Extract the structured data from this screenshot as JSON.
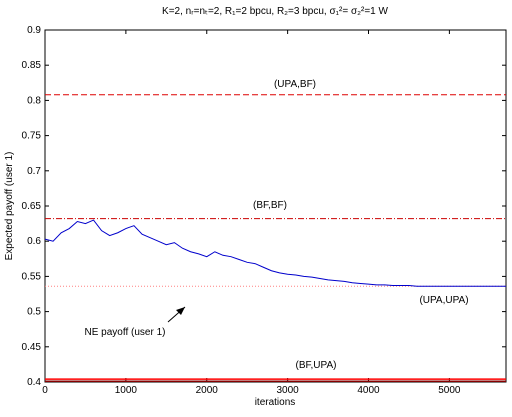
{
  "chart_data": {
    "type": "line",
    "title": "K=2, nᵣ=nₜ=2, R₁=2 bpcu, R₂=3 bpcu, σ₁²= σ₂²=1 W",
    "x_label": "iterations",
    "y_label": "Expected payoff (user 1)",
    "xlim": [
      0,
      5700
    ],
    "ylim": [
      0.4,
      0.9
    ],
    "xticks": [
      0,
      1000,
      2000,
      3000,
      4000,
      5000
    ],
    "yticks": [
      0.4,
      0.45,
      0.5,
      0.55,
      0.6,
      0.65,
      0.7,
      0.75,
      0.8,
      0.85,
      0.9
    ],
    "grid": false,
    "series": [
      {
        "color": "#0000cc",
        "x": [
          0,
          100,
          200,
          300,
          400,
          500,
          600,
          700,
          800,
          900,
          1000,
          1100,
          1200,
          1300,
          1400,
          1500,
          1600,
          1700,
          1800,
          1900,
          2000,
          2100,
          2200,
          2300,
          2400,
          2500,
          2600,
          2700,
          2800,
          2900,
          3000,
          3100,
          3200,
          3300,
          3400,
          3500,
          3600,
          3700,
          3800,
          3900,
          4000,
          4100,
          4200,
          4300,
          4400,
          4500,
          4600,
          4800,
          5000,
          5200,
          5400,
          5700
        ],
        "values": [
          0.603,
          0.6,
          0.612,
          0.618,
          0.628,
          0.625,
          0.63,
          0.615,
          0.608,
          0.612,
          0.618,
          0.622,
          0.61,
          0.605,
          0.6,
          0.595,
          0.598,
          0.59,
          0.585,
          0.582,
          0.578,
          0.585,
          0.58,
          0.578,
          0.574,
          0.57,
          0.568,
          0.563,
          0.558,
          0.555,
          0.553,
          0.552,
          0.55,
          0.549,
          0.547,
          0.545,
          0.544,
          0.543,
          0.541,
          0.54,
          0.539,
          0.538,
          0.538,
          0.537,
          0.537,
          0.537,
          0.536,
          0.536,
          0.536,
          0.536,
          0.536,
          0.536
        ]
      }
    ],
    "reference_lines": [
      {
        "value": 0.808,
        "color": "#dd0000",
        "style": "dashed"
      },
      {
        "value": 0.632,
        "color": "#cc0000",
        "style": "dashdot"
      },
      {
        "value": 0.536,
        "color": "#ff8080",
        "style": "dotted"
      },
      {
        "value": 0.404,
        "color": "#ff0000",
        "style": "solid"
      },
      {
        "value": 0.401,
        "color": "#880000",
        "style": "solid"
      }
    ],
    "annotations": [
      "(UPA,BF)",
      "(BF,BF)",
      "(UPA,UPA)",
      "NE payoff (user 1)",
      "(BF,UPA)"
    ]
  }
}
